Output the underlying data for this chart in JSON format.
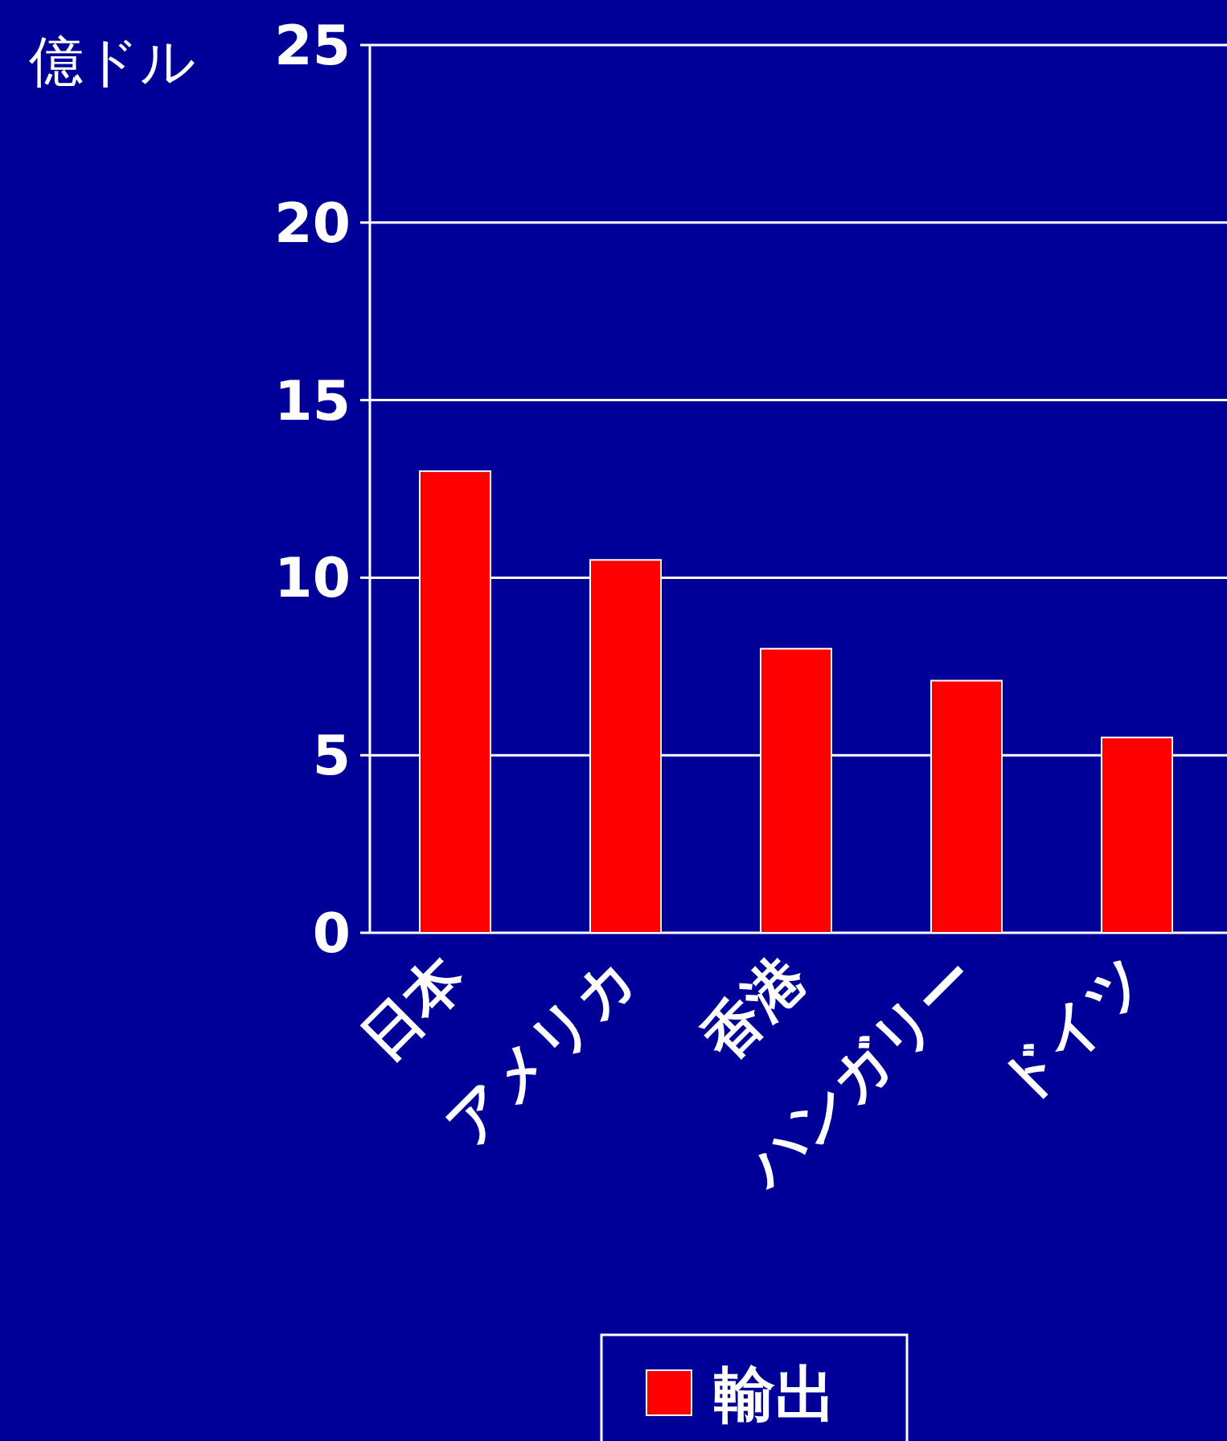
{
  "chart_data": {
    "type": "bar",
    "ylabel": "億ドル",
    "categories": [
      "日本",
      "アメリカ",
      "香港",
      "ハンガリー",
      "ドイツ"
    ],
    "series": [
      {
        "name": "輸出",
        "color": "#ff0000",
        "values": [
          13,
          10.5,
          8,
          7.1,
          5.5
        ]
      }
    ],
    "ylim": [
      0,
      25
    ],
    "yticks": [
      0,
      5,
      10,
      15,
      20,
      25
    ],
    "grid": "y",
    "legend": "bottom"
  }
}
